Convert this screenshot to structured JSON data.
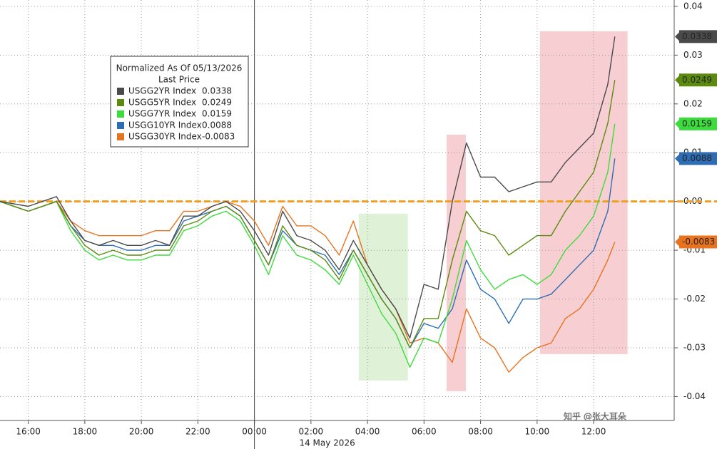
{
  "chart_data": {
    "type": "line",
    "legend_title": "Normalized As Of 05/13/2026",
    "legend_subtitle": "Last Price",
    "x": [
      15,
      16,
      17,
      17.5,
      18,
      18.5,
      19,
      19.5,
      20,
      20.5,
      21,
      21.5,
      22,
      22.5,
      23,
      23.5,
      24,
      24.5,
      25,
      25.5,
      26,
      26.5,
      27,
      27.5,
      28,
      28.5,
      29,
      29.5,
      30,
      30.5,
      31,
      31.5,
      32,
      32.5,
      33,
      33.5,
      34,
      34.5,
      35,
      35.5,
      36,
      36.5,
      36.75
    ],
    "xlim": [
      15,
      38.85
    ],
    "xticks": [
      {
        "value": 16,
        "label": "16:00"
      },
      {
        "value": 18,
        "label": "18:00"
      },
      {
        "value": 20,
        "label": "20:00"
      },
      {
        "value": 22,
        "label": "22:00"
      },
      {
        "value": 24,
        "label": "00:00"
      },
      {
        "value": 26,
        "label": "02:00"
      },
      {
        "value": 28,
        "label": "04:00"
      },
      {
        "value": 30,
        "label": "06:00"
      },
      {
        "value": 32,
        "label": "08:00"
      },
      {
        "value": 34,
        "label": "10:00"
      },
      {
        "value": 36,
        "label": "12:00"
      }
    ],
    "date_label": "14 May 2026",
    "day_divider": 24,
    "ylim": [
      -0.0449,
      0.0413
    ],
    "yticks": [
      0.04,
      0.03,
      0.02,
      0.01,
      {
        "value": 0,
        "label": "0.00"
      },
      -0.01,
      -0.02,
      -0.03,
      -0.04
    ],
    "grid": true,
    "zero_line": {
      "value": 0,
      "color": "#f2a01a"
    },
    "highlights": [
      {
        "x": [
          27.69,
          29.43
        ],
        "y": [
          -0.0025,
          -0.0367
        ],
        "color": "#dff2d8"
      },
      {
        "x": [
          30.8,
          31.48
        ],
        "y": [
          0.0137,
          -0.0389
        ],
        "color": "#f7cfd2"
      },
      {
        "x": [
          34.1,
          37.2
        ],
        "y": [
          0.0349,
          -0.0313
        ],
        "color": "#f7cfd2"
      }
    ],
    "series": [
      {
        "name": "USGG2YR Index",
        "color": "#4a4a4a",
        "values": [
          0,
          -0.001,
          0.001,
          -0.004,
          -0.008,
          -0.009,
          -0.008,
          -0.009,
          -0.009,
          -0.008,
          -0.009,
          -0.003,
          -0.003,
          -0.001,
          0,
          -0.002,
          -0.006,
          -0.011,
          -0.002,
          -0.007,
          -0.008,
          -0.01,
          -0.014,
          -0.008,
          -0.013,
          -0.018,
          -0.022,
          -0.028,
          -0.017,
          -0.018,
          0,
          0.012,
          0.005,
          0.005,
          0.002,
          0.003,
          0.004,
          0.004,
          0.008,
          0.011,
          0.014,
          0.024,
          0.0338
        ]
      },
      {
        "name": "USGG5YR Index",
        "color": "#5b8a0f",
        "values": [
          0,
          -0.002,
          0,
          -0.005,
          -0.009,
          -0.011,
          -0.01,
          -0.011,
          -0.011,
          -0.01,
          -0.01,
          -0.005,
          -0.004,
          -0.002,
          -0.001,
          -0.003,
          -0.008,
          -0.013,
          -0.005,
          -0.009,
          -0.01,
          -0.012,
          -0.016,
          -0.01,
          -0.015,
          -0.02,
          -0.024,
          -0.03,
          -0.024,
          -0.024,
          -0.012,
          -0.002,
          -0.006,
          -0.007,
          -0.011,
          -0.009,
          -0.007,
          -0.007,
          -0.002,
          0.002,
          0.006,
          0.016,
          0.0249
        ]
      },
      {
        "name": "USGG7YR Index",
        "color": "#3ddc3d",
        "values": [
          0,
          -0.002,
          0,
          -0.006,
          -0.01,
          -0.012,
          -0.011,
          -0.012,
          -0.012,
          -0.011,
          -0.011,
          -0.006,
          -0.005,
          -0.003,
          -0.002,
          -0.004,
          -0.009,
          -0.015,
          -0.007,
          -0.011,
          -0.012,
          -0.014,
          -0.017,
          -0.011,
          -0.017,
          -0.023,
          -0.027,
          -0.034,
          -0.028,
          -0.029,
          -0.02,
          -0.008,
          -0.014,
          -0.018,
          -0.016,
          -0.015,
          -0.017,
          -0.015,
          -0.01,
          -0.007,
          -0.003,
          0.006,
          0.0159
        ]
      },
      {
        "name": "USGG10YR Index",
        "color": "#2e6db4",
        "values": [
          0,
          -0.002,
          0,
          -0.005,
          -0.008,
          -0.009,
          -0.009,
          -0.01,
          -0.01,
          -0.009,
          -0.009,
          -0.004,
          -0.003,
          -0.002,
          -0.001,
          -0.003,
          -0.008,
          -0.013,
          -0.006,
          -0.009,
          -0.01,
          -0.011,
          -0.015,
          -0.01,
          -0.015,
          -0.02,
          -0.024,
          -0.03,
          -0.025,
          -0.026,
          -0.022,
          -0.012,
          -0.018,
          -0.02,
          -0.025,
          -0.02,
          -0.02,
          -0.019,
          -0.016,
          -0.013,
          -0.01,
          -0.002,
          0.0088
        ]
      },
      {
        "name": "USGG30YR Index",
        "color": "#e8731e",
        "values": [
          0,
          -0.002,
          0,
          -0.004,
          -0.006,
          -0.007,
          -0.007,
          -0.007,
          -0.007,
          -0.006,
          -0.006,
          -0.002,
          -0.002,
          -0.001,
          0,
          -0.001,
          -0.004,
          -0.009,
          -0.001,
          -0.005,
          -0.005,
          -0.007,
          -0.011,
          -0.004,
          -0.013,
          -0.018,
          -0.022,
          -0.029,
          -0.028,
          -0.029,
          -0.033,
          -0.022,
          -0.028,
          -0.03,
          -0.035,
          -0.032,
          -0.03,
          -0.029,
          -0.024,
          -0.022,
          -0.018,
          -0.012,
          -0.0083
        ]
      }
    ],
    "watermark": "知乎 @张大耳朵"
  }
}
